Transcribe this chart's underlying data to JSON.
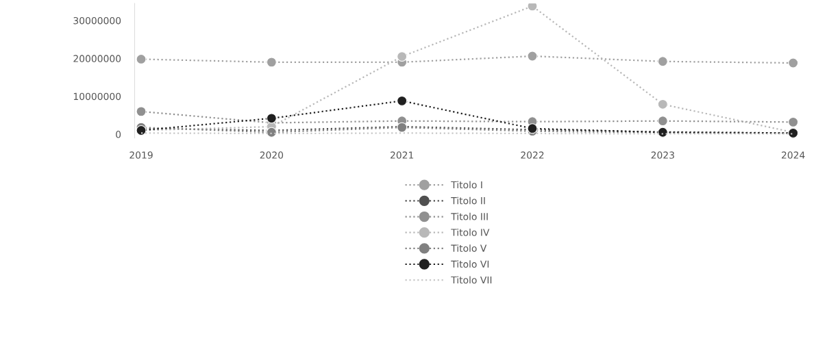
{
  "chart_data": {
    "type": "line",
    "categories": [
      "2019",
      "2020",
      "2021",
      "2022",
      "2023",
      "2024"
    ],
    "series": [
      {
        "name": "Titolo I",
        "color": "#a0a0a0",
        "values": [
          19800000,
          19000000,
          19000000,
          20600000,
          19200000,
          18800000
        ]
      },
      {
        "name": "Titolo II",
        "color": "#505050",
        "values": [
          1500000,
          1000000,
          2000000,
          1200000,
          600000,
          300000
        ]
      },
      {
        "name": "Titolo III",
        "color": "#909090",
        "values": [
          6000000,
          3000000,
          3500000,
          3300000,
          3500000,
          3200000
        ]
      },
      {
        "name": "Titolo IV",
        "color": "#b8b8b8",
        "values": [
          1000000,
          2000000,
          20500000,
          33800000,
          7900000,
          500000
        ]
      },
      {
        "name": "Titolo V",
        "color": "#808080",
        "values": [
          1800000,
          500000,
          1800000,
          800000,
          400000,
          200000
        ]
      },
      {
        "name": "Titolo VI",
        "color": "#202020",
        "values": [
          1000000,
          4200000,
          8800000,
          1500000,
          500000,
          300000
        ]
      },
      {
        "name": "Titolo VII",
        "color": "#c8c8c8",
        "marker": "none",
        "values": [
          300000,
          200000,
          300000,
          200000,
          100000,
          100000
        ]
      }
    ],
    "ylim": [
      -1000000,
      34500000
    ],
    "yticks": [
      0,
      10000000,
      20000000,
      30000000
    ],
    "marker": "circle",
    "line_style": "dotted",
    "grid": false,
    "legend": "bottom"
  }
}
